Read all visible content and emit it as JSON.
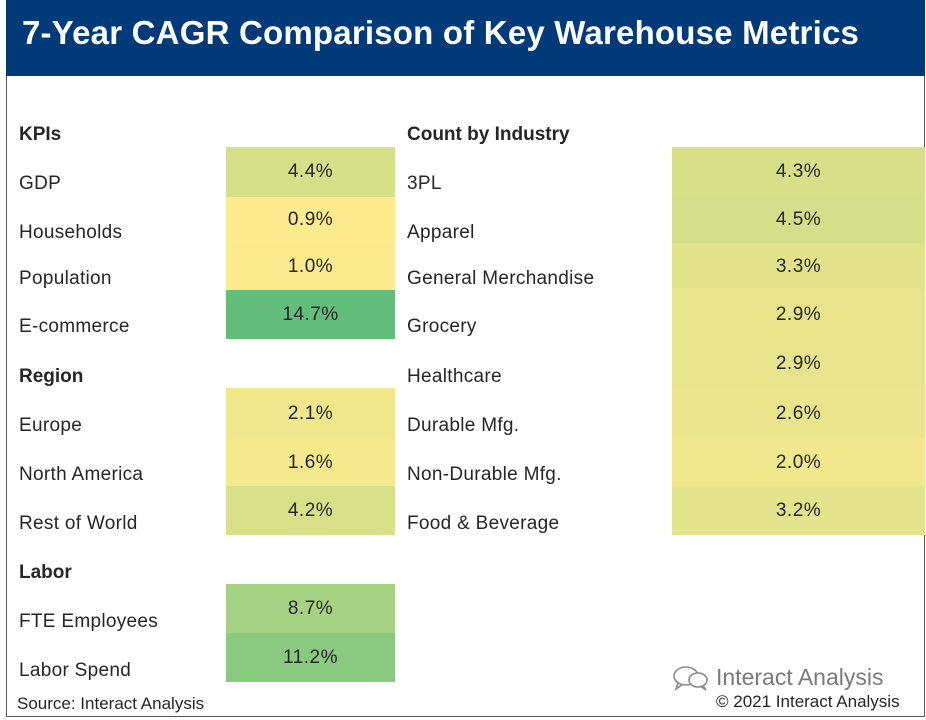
{
  "title": "7-Year CAGR Comparison of Key Warehouse Metrics",
  "chart_data": {
    "type": "table",
    "left_groups": [
      {
        "header": "KPIs",
        "rows": [
          {
            "label": "GDP",
            "value": "4.4%",
            "num": 4.4
          },
          {
            "label": "Households",
            "value": "0.9%",
            "num": 0.9
          },
          {
            "label": "Population",
            "value": "1.0%",
            "num": 1.0
          },
          {
            "label": "E-commerce",
            "value": "14.7%",
            "num": 14.7
          }
        ]
      },
      {
        "header": "Region",
        "rows": [
          {
            "label": "Europe",
            "value": "2.1%",
            "num": 2.1
          },
          {
            "label": "North America",
            "value": "1.6%",
            "num": 1.6
          },
          {
            "label": "Rest of World",
            "value": "4.2%",
            "num": 4.2
          }
        ]
      },
      {
        "header": "Labor",
        "rows": [
          {
            "label": "FTE Employees",
            "value": "8.7%",
            "num": 8.7
          },
          {
            "label": "Labor Spend",
            "value": "11.2%",
            "num": 11.2
          }
        ]
      }
    ],
    "right_group": {
      "header": "Count by Industry",
      "rows": [
        {
          "label": "3PL",
          "value": "4.3%",
          "num": 4.3
        },
        {
          "label": "Apparel",
          "value": "4.5%",
          "num": 4.5
        },
        {
          "label": "General Merchandise",
          "value": "3.3%",
          "num": 3.3
        },
        {
          "label": "Grocery",
          "value": "2.9%",
          "num": 2.9
        },
        {
          "label": "Healthcare",
          "value": "2.9%",
          "num": 2.9
        },
        {
          "label": "Durable Mfg.",
          "value": "2.6%",
          "num": 2.6
        },
        {
          "label": "Non-Durable Mfg.",
          "value": "2.0%",
          "num": 2.0
        },
        {
          "label": "Food & Beverage",
          "value": "3.2%",
          "num": 3.2
        }
      ]
    },
    "color_scale": {
      "low": "#fdeb8e",
      "high": "#63be7b"
    }
  },
  "footer": {
    "source": "Source: Interact Analysis",
    "logo_text": "Interact Analysis",
    "copyright": "© 2021 Interact Analysis"
  }
}
